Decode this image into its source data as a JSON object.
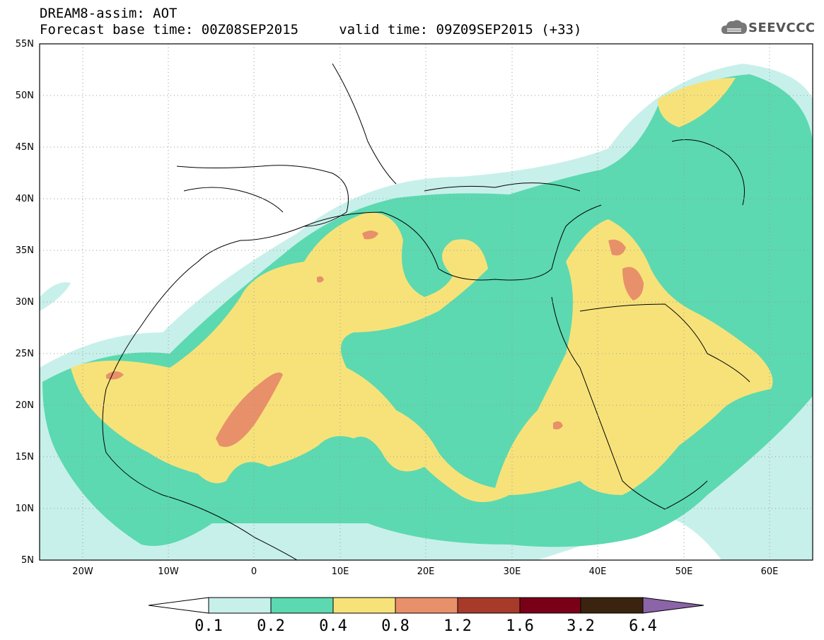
{
  "title": {
    "line1": "DREAM8-assim: AOT",
    "line2": "Forecast base time: 00Z08SEP2015     valid time: 09Z09SEP2015 (+33)"
  },
  "logo": {
    "text": "SEEVCCC",
    "icon": "cloud-icon"
  },
  "map": {
    "lon_range": [
      -25,
      65
    ],
    "lat_range": [
      5,
      55
    ],
    "grid": "dotted",
    "lat_labels": [
      "55N",
      "50N",
      "45N",
      "40N",
      "35N",
      "30N",
      "25N",
      "20N",
      "15N",
      "10N",
      "5N"
    ],
    "lon_labels": [
      "20W",
      "10W",
      "0",
      "10E",
      "20E",
      "30E",
      "40E",
      "50E",
      "60E"
    ]
  },
  "colorbar": {
    "labels": [
      "0.1",
      "0.2",
      "0.4",
      "0.8",
      "1.2",
      "1.6",
      "3.2",
      "6.4"
    ],
    "colors": [
      "#ffffff",
      "#c8f0ea",
      "#5cd9b0",
      "#f7e27a",
      "#e8906a",
      "#a83a2a",
      "#7a0018",
      "#3a2410",
      "#8c64a8"
    ]
  }
}
